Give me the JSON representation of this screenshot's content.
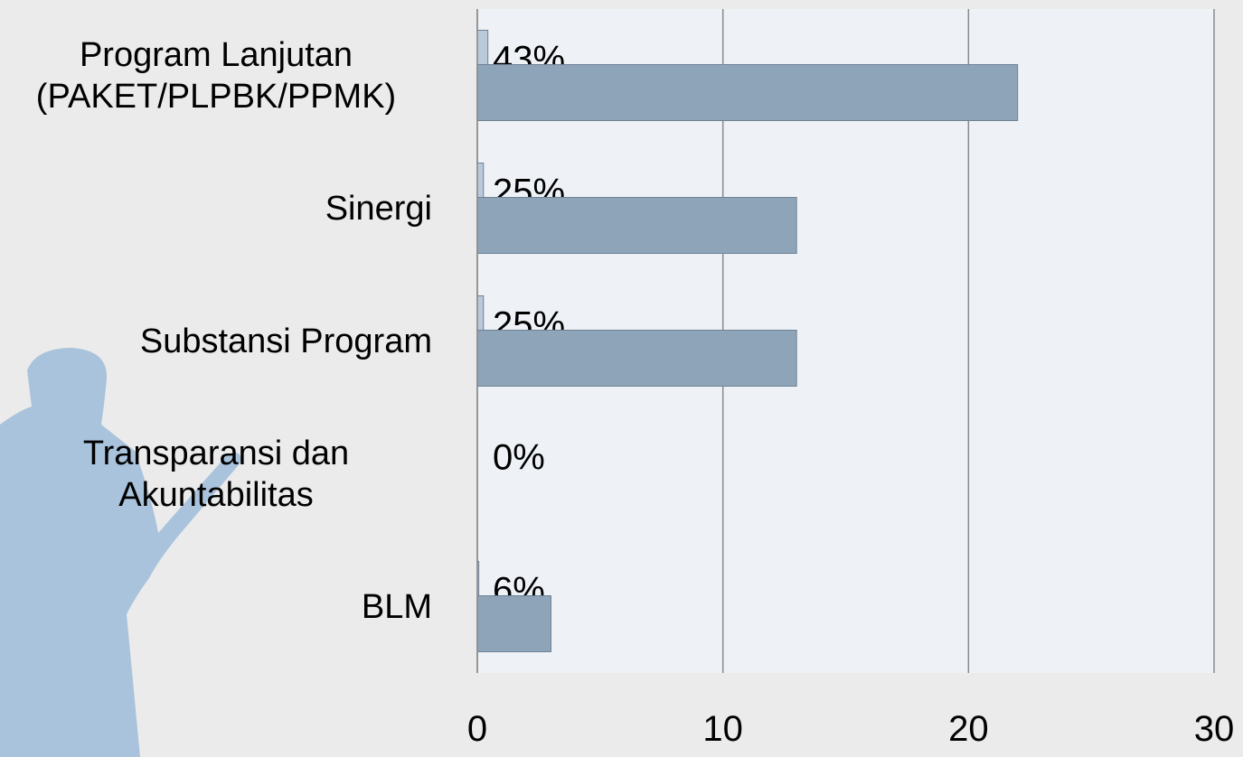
{
  "chart_data": {
    "type": "bar",
    "orientation": "horizontal",
    "categories": [
      "Program Lanjutan (PAKET/PLPBK/PPMK)",
      "Sinergi",
      "Substansi Program",
      "Transparansi dan Akuntabilitas",
      "BLM"
    ],
    "series": [
      {
        "color": "#b9c9da",
        "values": [
          0.43,
          0.25,
          0.25,
          0,
          0.06
        ],
        "value_labels": [
          "43%",
          "25%",
          "25%",
          "0%",
          "6%"
        ]
      },
      {
        "color": "#8ea4b8",
        "values": [
          22,
          13,
          13,
          0,
          3
        ]
      }
    ],
    "xlim": [
      0,
      30
    ],
    "xticks": [
      0,
      10,
      20,
      30
    ],
    "grid": true
  }
}
